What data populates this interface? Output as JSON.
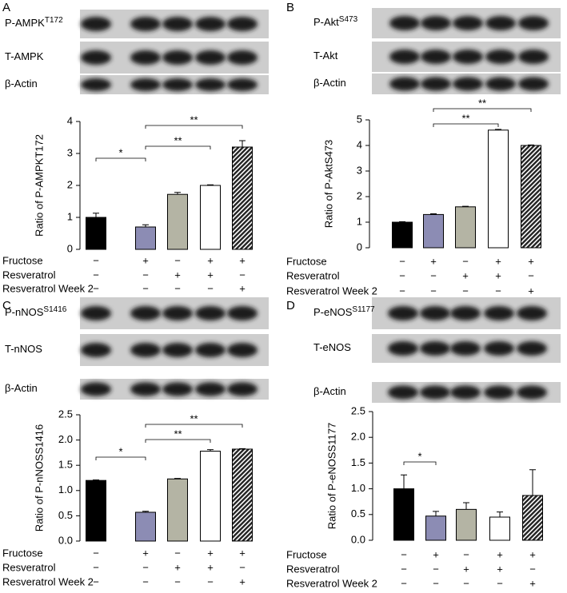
{
  "chart_data": [
    {
      "type": "bar",
      "panel": "A",
      "blots": [
        {
          "label": "P-AMPK",
          "superscript": "T172"
        },
        {
          "label": "T-AMPK"
        },
        {
          "label": "β-Actin"
        }
      ],
      "y_label": "Ratio of P-AMPKT172",
      "values": [
        1.0,
        0.7,
        1.72,
        2.0,
        3.2
      ],
      "errors": [
        0.13,
        0.07,
        0.06,
        0.02,
        0.2
      ],
      "colors": [
        "#000000",
        "#8c8cb4",
        "#b4b4a4",
        "#ffffff",
        "#3a3a3a"
      ],
      "hatch": [
        false,
        false,
        false,
        false,
        true
      ],
      "ylim": [
        0,
        4
      ],
      "yticks": [
        0,
        1,
        2,
        3,
        4
      ],
      "significance": [
        {
          "label": "*",
          "from": 0,
          "to": 1
        },
        {
          "label": "**",
          "from": 1,
          "to": 3
        },
        {
          "label": "**",
          "from": 1,
          "to": 4
        }
      ],
      "treatments": [
        {
          "label": "Fructose",
          "signs": [
            "−",
            "+",
            "−",
            "+",
            "+"
          ]
        },
        {
          "label": "Resveratrol",
          "signs": [
            "−",
            "−",
            "+",
            "+",
            "−"
          ]
        },
        {
          "label": "Resveratrol Week 2",
          "signs": [
            "−",
            "−",
            "−",
            "−",
            "+"
          ]
        }
      ]
    },
    {
      "type": "bar",
      "panel": "B",
      "blots": [
        {
          "label": "P-Akt",
          "superscript": "S473"
        },
        {
          "label": "T-Akt"
        },
        {
          "label": "β-Actin"
        }
      ],
      "y_label": "Ratio of P-AktS473",
      "values": [
        1.0,
        1.3,
        1.6,
        4.6,
        4.0
      ],
      "errors": [
        0.02,
        0.03,
        0.02,
        0.03,
        0.02
      ],
      "colors": [
        "#000000",
        "#8c8cb4",
        "#b4b4a4",
        "#ffffff",
        "#3a3a3a"
      ],
      "hatch": [
        false,
        false,
        false,
        false,
        true
      ],
      "ylim": [
        0,
        5
      ],
      "yticks": [
        0,
        1,
        2,
        3,
        4,
        5
      ],
      "significance": [
        {
          "label": "**",
          "from": 1,
          "to": 3
        },
        {
          "label": "**",
          "from": 1,
          "to": 4
        }
      ],
      "treatments": [
        {
          "label": "Fructose",
          "signs": [
            "−",
            "+",
            "−",
            "+",
            "+"
          ]
        },
        {
          "label": "Resveratrol",
          "signs": [
            "−",
            "−",
            "+",
            "+",
            "−"
          ]
        },
        {
          "label": "Resveratrol Week 2",
          "signs": [
            "−",
            "−",
            "−",
            "−",
            "+"
          ]
        }
      ]
    },
    {
      "type": "bar",
      "panel": "C",
      "blots": [
        {
          "label": "P-nNOS",
          "superscript": "S1416"
        },
        {
          "label": "T-nNOS"
        },
        {
          "label": "β-Actin"
        }
      ],
      "y_label": "Ratio of P-nNOSS1416",
      "values": [
        1.2,
        0.57,
        1.23,
        1.78,
        1.82
      ],
      "errors": [
        0.01,
        0.02,
        0.01,
        0.03,
        0.01
      ],
      "colors": [
        "#000000",
        "#8c8cb4",
        "#b4b4a4",
        "#ffffff",
        "#3a3a3a"
      ],
      "hatch": [
        false,
        false,
        false,
        false,
        true
      ],
      "ylim": [
        0,
        2.5
      ],
      "yticks": [
        {
          "value": 0,
          "label": "0.0"
        },
        0.5,
        {
          "value": 1,
          "label": "1.0"
        },
        1.5,
        {
          "value": 2,
          "label": "2.0"
        },
        2.5
      ],
      "significance": [
        {
          "label": "*",
          "from": 0,
          "to": 1
        },
        {
          "label": "**",
          "from": 1,
          "to": 3
        },
        {
          "label": "**",
          "from": 1,
          "to": 4
        }
      ],
      "treatments": [
        {
          "label": "Fructose",
          "signs": [
            "−",
            "+",
            "−",
            "+",
            "+"
          ]
        },
        {
          "label": "Resveratrol",
          "signs": [
            "−",
            "−",
            "+",
            "+",
            "−"
          ]
        },
        {
          "label": "Resveratrol Week 2",
          "signs": [
            "−",
            "−",
            "−",
            "−",
            "+"
          ]
        }
      ]
    },
    {
      "type": "bar",
      "panel": "D",
      "blots": [
        {
          "label": "P-eNOS",
          "superscript": "S1177"
        },
        {
          "label": "T-eNOS"
        },
        {
          "label": "β-Actin"
        }
      ],
      "y_label": "Ratio of P-eNOSS1177",
      "values": [
        1.0,
        0.47,
        0.6,
        0.45,
        0.87
      ],
      "errors": [
        0.27,
        0.09,
        0.13,
        0.1,
        0.5
      ],
      "colors": [
        "#000000",
        "#8c8cb4",
        "#b4b4a4",
        "#ffffff",
        "#3a3a3a"
      ],
      "hatch": [
        false,
        false,
        false,
        false,
        true
      ],
      "ylim": [
        0,
        2.5
      ],
      "yticks": [
        {
          "value": 0,
          "label": "0.0"
        },
        0.5,
        {
          "value": 1,
          "label": "1.0"
        },
        1.5,
        {
          "value": 2,
          "label": "2.0"
        },
        2.5
      ],
      "significance": [
        {
          "label": "*",
          "from": 0,
          "to": 1
        }
      ],
      "treatments": [
        {
          "label": "Fructose",
          "signs": [
            "−",
            "+",
            "−",
            "+",
            "+"
          ]
        },
        {
          "label": "Resveratrol",
          "signs": [
            "−",
            "−",
            "+",
            "+",
            "−"
          ]
        },
        {
          "label": "Resveratrol Week 2",
          "signs": [
            "−",
            "−",
            "−",
            "−",
            "+"
          ]
        }
      ]
    }
  ]
}
